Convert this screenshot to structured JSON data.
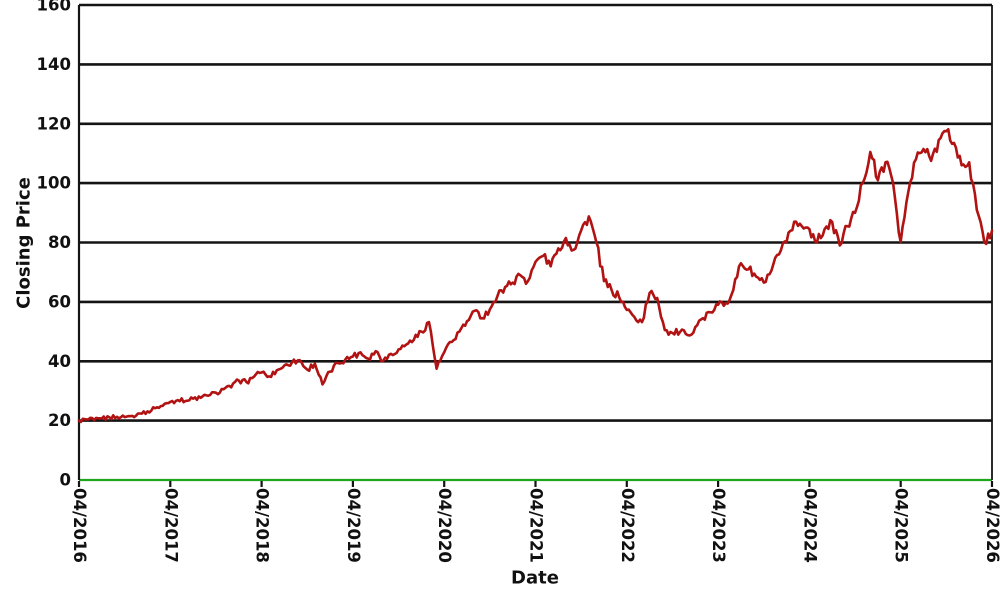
{
  "chart_data": {
    "type": "line",
    "title": "",
    "xlabel": "Date",
    "ylabel": "Closing Price",
    "x_tick_labels": [
      "04/2016",
      "04/2017",
      "04/2018",
      "04/2019",
      "04/2020",
      "04/2021",
      "04/2022",
      "04/2023",
      "04/2024",
      "04/2025",
      "04/2026"
    ],
    "y_ticks": [
      0,
      20,
      40,
      60,
      80,
      100,
      120,
      140,
      160
    ],
    "ylim": [
      0,
      160
    ],
    "grid": "horizontal-on",
    "legend": "none",
    "colors": {
      "line": "#B11212",
      "grid": "#141414",
      "axis": "#141414",
      "zero_line": "#1FA51F",
      "text": "#111111",
      "background": "#FFFFFF"
    },
    "series": [
      {
        "name": "Closing Price",
        "start": "2016-04",
        "interval": "monthly",
        "values": [
          20.0,
          20.4,
          20.2,
          20.7,
          21.1,
          21.3,
          21.2,
          21.6,
          22.4,
          23.1,
          24.2,
          25.0,
          26.3,
          26.9,
          26.6,
          27.4,
          27.7,
          28.4,
          29.4,
          30.6,
          31.2,
          33.5,
          33.0,
          34.8,
          36.2,
          34.9,
          37.0,
          38.6,
          39.6,
          40.4,
          37.2,
          39.2,
          32.2,
          36.5,
          39.4,
          40.6,
          41.6,
          43.0,
          40.9,
          43.4,
          40.2,
          42.5,
          44.0,
          45.6,
          47.2,
          50.0,
          53.2,
          37.5,
          43.0,
          46.5,
          50.0,
          53.5,
          57.0,
          54.5,
          57.5,
          62.0,
          65.0,
          66.5,
          69.0,
          67.0,
          73.5,
          75.5,
          72.0,
          78.0,
          81.5,
          77.5,
          84.0,
          88.8,
          80.0,
          67.0,
          64.0,
          61.5,
          57.3,
          54.9,
          53.2,
          63.0,
          61.3,
          50.5,
          49.5,
          49.9,
          48.8,
          51.5,
          54.5,
          56.5,
          59.0,
          59.6,
          64.0,
          73.0,
          71.0,
          68.5,
          66.5,
          70.5,
          76.0,
          80.2,
          87.0,
          85.5,
          84.5,
          80.0,
          84.5,
          86.9,
          79.0,
          85.5,
          90.0,
          100.0,
          110.5,
          101.0,
          107.0,
          100.0,
          80.2,
          97.0,
          108.0,
          111.5,
          107.5,
          114.5,
          117.5,
          113.5,
          106.0,
          107.0,
          91.0,
          80.0,
          84.0
        ]
      }
    ],
    "render_hints": {
      "subdivisions": 4,
      "jitter_base": 0.3,
      "jitter_scale": 0.018,
      "line_width": 2.6,
      "grid_width": 2.6,
      "zero_line_width": 2.2,
      "tick_font_size": 16.5
    }
  }
}
